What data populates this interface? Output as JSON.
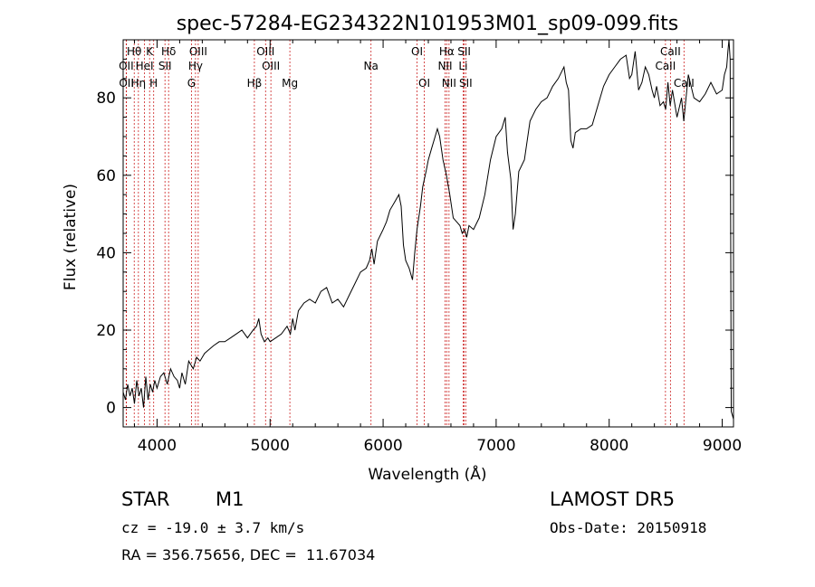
{
  "chart_data": {
    "type": "line",
    "title": "spec-57284-EG234322N101953M01_sp09-099.fits",
    "xlabel": "Wavelength (Å)",
    "ylabel": "Flux (relative)",
    "xlim": [
      3700,
      9100
    ],
    "ylim": [
      -5,
      95
    ],
    "xticks": [
      4000,
      5000,
      6000,
      7000,
      8000,
      9000
    ],
    "yticks": [
      0,
      20,
      40,
      60,
      80
    ],
    "grid": false,
    "line_color": "#000000",
    "marker_color": "#cc2222",
    "series": [
      {
        "x": [
          3700,
          3720,
          3740,
          3760,
          3780,
          3800,
          3820,
          3840,
          3860,
          3880,
          3900,
          3920,
          3940,
          3960,
          3980,
          4000,
          4030,
          4060,
          4090,
          4120,
          4150,
          4180,
          4200,
          4220,
          4250,
          4280,
          4300,
          4320,
          4350,
          4380,
          4420,
          4460,
          4500,
          4550,
          4600,
          4650,
          4700,
          4750,
          4800,
          4850,
          4880,
          4900,
          4920,
          4950,
          4980,
          5000,
          5050,
          5100,
          5150,
          5180,
          5200,
          5220,
          5250,
          5300,
          5350,
          5400,
          5450,
          5500,
          5550,
          5600,
          5650,
          5700,
          5750,
          5800,
          5850,
          5880,
          5900,
          5920,
          5950,
          6000,
          6030,
          6060,
          6100,
          6140,
          6160,
          6180,
          6200,
          6230,
          6260,
          6280,
          6300,
          6330,
          6350,
          6380,
          6400,
          6430,
          6460,
          6480,
          6500,
          6530,
          6560,
          6590,
          6620,
          6650,
          6680,
          6700,
          6720,
          6740,
          6760,
          6800,
          6850,
          6900,
          6950,
          7000,
          7050,
          7080,
          7100,
          7130,
          7150,
          7170,
          7200,
          7250,
          7300,
          7350,
          7400,
          7450,
          7500,
          7550,
          7600,
          7620,
          7640,
          7660,
          7680,
          7700,
          7750,
          7800,
          7850,
          7900,
          7950,
          8000,
          8050,
          8100,
          8150,
          8180,
          8200,
          8230,
          8260,
          8290,
          8320,
          8350,
          8380,
          8400,
          8420,
          8450,
          8480,
          8500,
          8520,
          8540,
          8560,
          8600,
          8640,
          8660,
          8700,
          8750,
          8800,
          8850,
          8900,
          8950,
          9000,
          9020,
          9040,
          9050,
          9060,
          9070,
          9080,
          9090,
          9100
        ],
        "values": [
          4,
          2,
          6,
          3,
          5,
          1,
          7,
          3,
          5,
          0,
          8,
          2,
          6,
          4,
          7,
          5,
          8,
          9,
          6,
          10,
          8,
          7,
          5,
          9,
          6,
          12,
          11,
          10,
          13,
          12,
          14,
          15,
          16,
          17,
          17,
          18,
          19,
          20,
          18,
          20,
          21,
          23,
          19,
          17,
          18,
          17,
          18,
          19,
          21,
          19,
          23,
          20,
          25,
          27,
          28,
          27,
          30,
          31,
          27,
          28,
          26,
          29,
          32,
          35,
          36,
          38,
          41,
          37,
          43,
          46,
          48,
          51,
          53,
          55,
          52,
          42,
          38,
          36,
          33,
          40,
          46,
          52,
          57,
          61,
          64,
          67,
          70,
          72,
          70,
          64,
          60,
          55,
          49,
          48,
          47,
          45,
          46,
          44,
          47,
          46,
          49,
          55,
          64,
          70,
          72,
          75,
          66,
          59,
          46,
          50,
          61,
          64,
          74,
          77,
          79,
          80,
          83,
          85,
          88,
          84,
          82,
          69,
          67,
          71,
          72,
          72,
          73,
          78,
          83,
          86,
          88,
          90,
          91,
          85,
          86,
          92,
          82,
          84,
          88,
          86,
          82,
          80,
          83,
          78,
          79,
          77,
          84,
          78,
          82,
          75,
          80,
          74,
          86,
          80,
          79,
          81,
          84,
          81,
          82,
          86,
          88,
          92,
          95,
          90,
          -1,
          -2,
          -3
        ]
      }
    ],
    "lines": [
      {
        "name": "Hθ",
        "wave": 3798,
        "row": 0
      },
      {
        "name": "K",
        "wave": 3934,
        "row": 0
      },
      {
        "name": "Hδ",
        "wave": 4102,
        "row": 0
      },
      {
        "name": "OIII",
        "wave": 4364,
        "row": 0
      },
      {
        "name": "OIII",
        "wave": 4960,
        "row": 0
      },
      {
        "name": "OI",
        "wave": 6300,
        "row": 0
      },
      {
        "name": "Hα",
        "wave": 6563,
        "row": 0
      },
      {
        "name": "SII",
        "wave": 6717,
        "row": 0
      },
      {
        "name": "CaII",
        "wave": 8542,
        "row": 0
      },
      {
        "name": "OII",
        "wave": 3727,
        "row": 1
      },
      {
        "name": "HeI",
        "wave": 3889,
        "row": 1
      },
      {
        "name": "SII",
        "wave": 4070,
        "row": 1
      },
      {
        "name": "Hγ",
        "wave": 4340,
        "row": 1
      },
      {
        "name": "OIII",
        "wave": 5007,
        "row": 1
      },
      {
        "name": "NII",
        "wave": 6548,
        "row": 1
      },
      {
        "name": "Li",
        "wave": 6708,
        "row": 1
      },
      {
        "name": "CaII",
        "wave": 8498,
        "row": 1
      },
      {
        "name": "OII",
        "wave": 3729,
        "row": 2
      },
      {
        "name": "Hη",
        "wave": 3835,
        "row": 2
      },
      {
        "name": "H",
        "wave": 3970,
        "row": 2
      },
      {
        "name": "G",
        "wave": 4304,
        "row": 2
      },
      {
        "name": "Hβ",
        "wave": 4861,
        "row": 2
      },
      {
        "name": "Mg",
        "wave": 5175,
        "row": 2
      },
      {
        "name": "Na",
        "wave": 5893,
        "row": 1
      },
      {
        "name": "OI",
        "wave": 6364,
        "row": 2
      },
      {
        "name": "NII",
        "wave": 6583,
        "row": 2
      },
      {
        "name": "SII",
        "wave": 6731,
        "row": 2
      },
      {
        "name": "CaII",
        "wave": 8662,
        "row": 2
      }
    ]
  },
  "info": {
    "class": "STAR",
    "subclass": "M1",
    "survey": "LAMOST DR5",
    "cz": "cz = -19.0 ± 3.7 km/s",
    "obs_date": "Obs-Date: 20150918",
    "radec": "RA = 356.75656, DEC =  11.67034"
  }
}
